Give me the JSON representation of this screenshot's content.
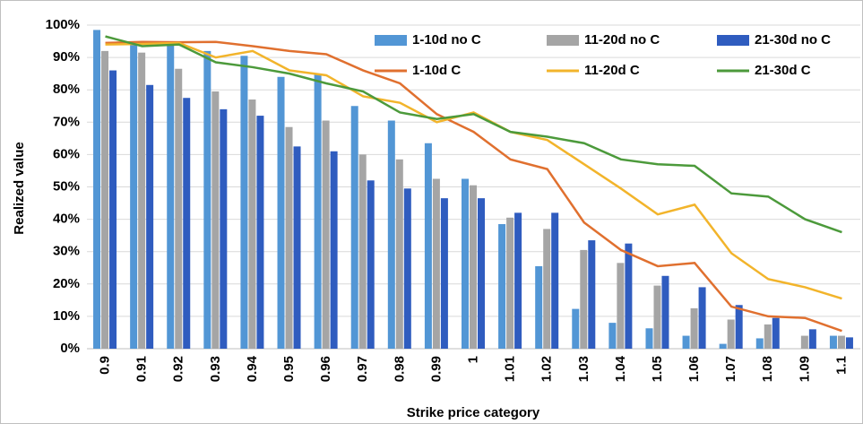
{
  "chart_data": {
    "type": "combo",
    "xlabel": "Strike price category",
    "ylabel": "Realized value",
    "categories": [
      "0.9",
      "0.91",
      "0.92",
      "0.93",
      "0.94",
      "0.95",
      "0.96",
      "0.97",
      "0.98",
      "0.99",
      "1",
      "1.01",
      "1.02",
      "1.03",
      "1.04",
      "1.05",
      "1.06",
      "1.07",
      "1.08",
      "1.09",
      "1.1"
    ],
    "ylim": [
      0,
      100
    ],
    "yticks": [
      {
        "value": 0,
        "label": "0%"
      },
      {
        "value": 10,
        "label": "10%"
      },
      {
        "value": 20,
        "label": "20%"
      },
      {
        "value": 30,
        "label": "30%"
      },
      {
        "value": 40,
        "label": "40%"
      },
      {
        "value": 50,
        "label": "50%"
      },
      {
        "value": 60,
        "label": "60%"
      },
      {
        "value": 70,
        "label": "70%"
      },
      {
        "value": 80,
        "label": "80%"
      },
      {
        "value": 90,
        "label": "90%"
      },
      {
        "value": 100,
        "label": "100%"
      }
    ],
    "grid": true,
    "legend": "top-right",
    "series": [
      {
        "name": "1-10d no C",
        "type": "bar",
        "color": "#5296d5",
        "values": [
          98.5,
          95,
          94,
          92,
          90.5,
          84,
          85,
          75,
          70.5,
          63.5,
          52.5,
          38.5,
          25.5,
          12.3,
          8,
          6.3,
          4,
          1.5,
          3.2,
          0,
          4
        ]
      },
      {
        "name": "11-20d no C",
        "type": "bar",
        "color": "#a5a5a5",
        "values": [
          92,
          91.5,
          86.5,
          79.5,
          77,
          68.5,
          70.5,
          60,
          58.5,
          52.5,
          50.5,
          40.5,
          37,
          30.5,
          26.5,
          19.5,
          12.5,
          9,
          7.5,
          4,
          4
        ]
      },
      {
        "name": "21-30d no C",
        "type": "bar",
        "color": "#2f5cbf",
        "values": [
          86,
          81.5,
          77.5,
          74,
          72,
          62.5,
          61,
          52,
          49.5,
          46.5,
          46.5,
          42,
          42,
          33.5,
          32.5,
          22.5,
          19,
          13.5,
          9.5,
          6,
          3.5
        ]
      },
      {
        "name": "1-10d C",
        "type": "line",
        "color": "#e0702f",
        "values": [
          94.5,
          94.8,
          94.7,
          94.8,
          93.5,
          92,
          91,
          86,
          82,
          72.5,
          67,
          58.5,
          55.5,
          39,
          30.5,
          25.5,
          26.5,
          13,
          10,
          9.5,
          5.5
        ]
      },
      {
        "name": "11-20d C",
        "type": "line",
        "color": "#f2b42b",
        "values": [
          94,
          94.2,
          94.5,
          90,
          92,
          86,
          84.5,
          78,
          76,
          70,
          73,
          67,
          64.5,
          57,
          49.5,
          41.5,
          44.5,
          29.5,
          21.5,
          19,
          15.5
        ]
      },
      {
        "name": "21-30d C",
        "type": "line",
        "color": "#4c9a3b",
        "values": [
          96.5,
          93.5,
          94,
          88.5,
          87,
          85,
          82,
          79.5,
          73,
          71,
          72.5,
          67,
          65.5,
          63.5,
          58.5,
          57,
          56.5,
          48,
          47,
          40,
          36
        ]
      }
    ]
  }
}
